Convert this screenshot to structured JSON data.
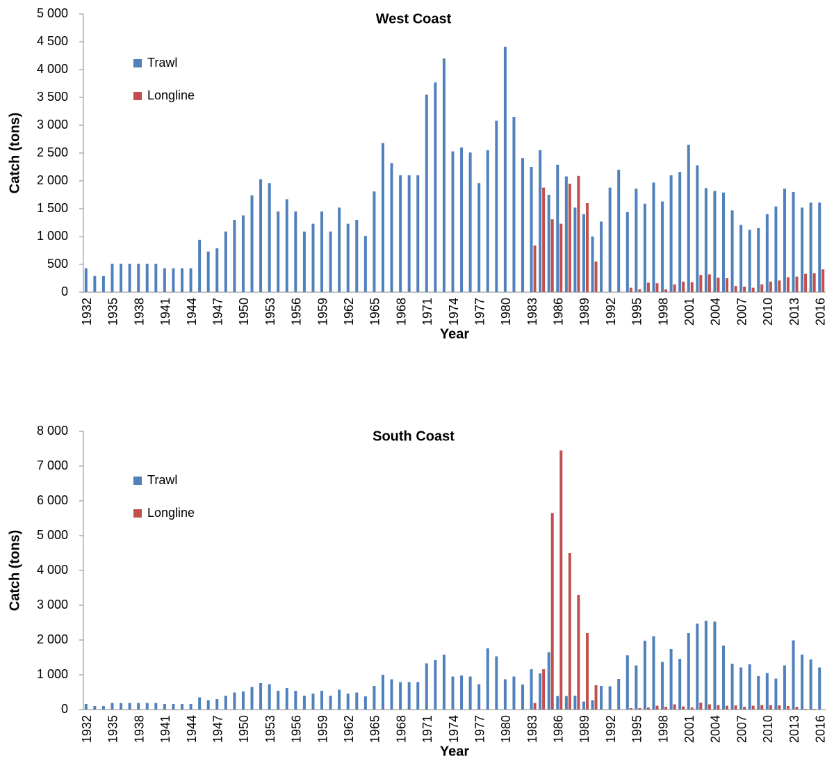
{
  "chart_data": [
    {
      "type": "bar",
      "title": "West Coast",
      "x_label": "Year",
      "y_label": "Catch (tons)",
      "legend": "upper left",
      "categories": [
        "1932",
        null,
        null,
        "1935",
        null,
        null,
        "1938",
        null,
        null,
        "1941",
        null,
        null,
        "1944",
        null,
        null,
        "1947",
        null,
        null,
        "1950",
        null,
        null,
        "1953",
        null,
        null,
        "1956",
        null,
        null,
        "1959",
        null,
        null,
        "1962",
        null,
        null,
        "1965",
        null,
        null,
        "1968",
        null,
        null,
        "1971",
        null,
        null,
        "1974",
        null,
        null,
        "1977",
        null,
        null,
        "1980",
        null,
        null,
        "1983",
        null,
        null,
        "1986",
        null,
        null,
        "1989",
        null,
        null,
        "1992",
        null,
        null,
        "1995",
        null,
        null,
        "1998",
        null,
        null,
        "2001",
        null,
        null,
        "2004",
        null,
        null,
        "2007",
        null,
        null,
        "2010",
        null,
        null,
        "2013",
        null,
        null,
        "2016"
      ],
      "series": [
        {
          "name": "Trawl",
          "color": "#4f81bd",
          "values": [
            430,
            290,
            290,
            510,
            510,
            510,
            510,
            510,
            510,
            430,
            430,
            430,
            430,
            940,
            730,
            790,
            1090,
            1300,
            1380,
            1740,
            2030,
            1960,
            1450,
            1670,
            1450,
            1090,
            1230,
            1450,
            1090,
            1520,
            1230,
            1300,
            1010,
            1810,
            2680,
            2320,
            2100,
            2100,
            2100,
            3550,
            3770,
            4200,
            2530,
            2600,
            2510,
            1960,
            2550,
            3080,
            4410,
            3150,
            2410,
            2250,
            2550,
            1750,
            2290,
            2080,
            1520,
            1400,
            1000,
            1270,
            1880,
            2200,
            1440,
            1860,
            1590,
            1970,
            1630,
            2100,
            2160,
            2650,
            2280,
            1870,
            1820,
            1790,
            1470,
            1210,
            1120,
            1150,
            1400,
            1540,
            1860,
            1800,
            1520,
            1610,
            1610
          ]
        },
        {
          "name": "Longline",
          "color": "#c0504d",
          "values": [
            0,
            0,
            0,
            0,
            0,
            0,
            0,
            0,
            0,
            0,
            0,
            0,
            0,
            0,
            0,
            0,
            0,
            0,
            0,
            0,
            0,
            0,
            0,
            0,
            0,
            0,
            0,
            0,
            0,
            0,
            0,
            0,
            0,
            0,
            0,
            0,
            0,
            0,
            0,
            0,
            0,
            0,
            0,
            0,
            0,
            0,
            0,
            0,
            0,
            0,
            0,
            840,
            1880,
            1310,
            1230,
            1950,
            2090,
            1600,
            550,
            0,
            0,
            0,
            80,
            50,
            170,
            160,
            50,
            140,
            190,
            180,
            310,
            320,
            260,
            250,
            110,
            100,
            80,
            140,
            190,
            210,
            270,
            280,
            330,
            340,
            410
          ]
        }
      ],
      "ylim": [
        0,
        5000
      ],
      "yticks": [
        0,
        500,
        {
          "value": 1000,
          "label": "1 000"
        },
        {
          "value": 1500,
          "label": "1 500"
        },
        {
          "value": 2000,
          "label": "2 000"
        },
        {
          "value": 2500,
          "label": "2 500"
        },
        {
          "value": 3000,
          "label": "3 000"
        },
        {
          "value": 3500,
          "label": "3 500"
        },
        {
          "value": 4000,
          "label": "4 000"
        },
        {
          "value": 4500,
          "label": "4 500"
        },
        {
          "value": 5000,
          "label": "5 000"
        }
      ]
    },
    {
      "type": "bar",
      "title": "South Coast",
      "x_label": "Year",
      "y_label": "Catch (tons)",
      "legend": "upper left",
      "categories": [
        "1932",
        null,
        null,
        "1935",
        null,
        null,
        "1938",
        null,
        null,
        "1941",
        null,
        null,
        "1944",
        null,
        null,
        "1947",
        null,
        null,
        "1950",
        null,
        null,
        "1953",
        null,
        null,
        "1956",
        null,
        null,
        "1959",
        null,
        null,
        "1962",
        null,
        null,
        "1965",
        null,
        null,
        "1968",
        null,
        null,
        "1971",
        null,
        null,
        "1974",
        null,
        null,
        "1977",
        null,
        null,
        "1980",
        null,
        null,
        "1983",
        null,
        null,
        "1986",
        null,
        null,
        "1989",
        null,
        null,
        "1992",
        null,
        null,
        "1995",
        null,
        null,
        "1998",
        null,
        null,
        "2001",
        null,
        null,
        "2004",
        null,
        null,
        "2007",
        null,
        null,
        "2010",
        null,
        null,
        "2013",
        null,
        null,
        "2016"
      ],
      "series": [
        {
          "name": "Trawl",
          "color": "#4f81bd",
          "values": [
            160,
            100,
            100,
            190,
            190,
            190,
            190,
            190,
            190,
            160,
            160,
            160,
            160,
            350,
            270,
            300,
            400,
            490,
            520,
            650,
            760,
            730,
            540,
            620,
            540,
            400,
            460,
            540,
            400,
            570,
            460,
            490,
            380,
            680,
            1000,
            870,
            790,
            790,
            790,
            1330,
            1420,
            1580,
            950,
            980,
            950,
            730,
            1760,
            1530,
            870,
            950,
            720,
            1160,
            1040,
            1650,
            390,
            390,
            400,
            230,
            270,
            680,
            670,
            880,
            1560,
            1270,
            1980,
            2110,
            1370,
            1740,
            1460,
            2200,
            2470,
            2550,
            2530,
            1840,
            1320,
            1210,
            1300,
            960,
            1050,
            890,
            1270,
            1990,
            1580,
            1440,
            1210
          ]
        },
        {
          "name": "Longline",
          "color": "#c0504d",
          "values": [
            0,
            0,
            0,
            0,
            0,
            0,
            0,
            0,
            0,
            0,
            0,
            0,
            0,
            0,
            0,
            0,
            0,
            0,
            0,
            0,
            0,
            0,
            0,
            0,
            0,
            0,
            0,
            0,
            0,
            0,
            0,
            0,
            0,
            0,
            0,
            0,
            0,
            0,
            0,
            0,
            0,
            0,
            0,
            0,
            0,
            0,
            0,
            0,
            0,
            0,
            0,
            190,
            1160,
            5650,
            7450,
            4500,
            3300,
            2200,
            700,
            0,
            0,
            0,
            40,
            40,
            60,
            110,
            80,
            150,
            90,
            60,
            200,
            150,
            130,
            110,
            120,
            80,
            110,
            130,
            130,
            120,
            100,
            80,
            20,
            20,
            0
          ]
        }
      ],
      "ylim": [
        0,
        8000
      ],
      "yticks": [
        0,
        {
          "value": 1000,
          "label": "1 000"
        },
        {
          "value": 2000,
          "label": "2 000"
        },
        {
          "value": 3000,
          "label": "3 000"
        },
        {
          "value": 4000,
          "label": "4 000"
        },
        {
          "value": 5000,
          "label": "5 000"
        },
        {
          "value": 6000,
          "label": "6 000"
        },
        {
          "value": 7000,
          "label": "7 000"
        },
        {
          "value": 8000,
          "label": "8 000"
        }
      ]
    }
  ]
}
